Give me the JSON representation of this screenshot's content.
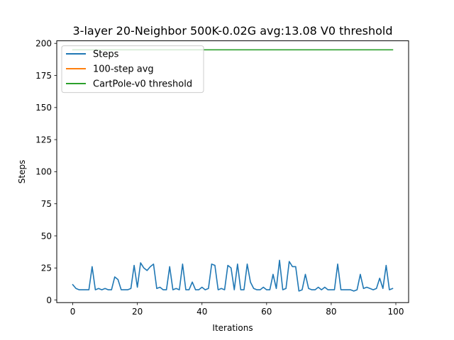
{
  "chart_data": {
    "type": "line",
    "title": "3-layer 20-Neighbor 500K-0.02G avg:13.08 V0 threshold",
    "xlabel": "Iterations",
    "ylabel": "Steps",
    "xlim": [
      -4.95,
      103.95
    ],
    "ylim": [
      -2.0,
      202.0
    ],
    "xticks": [
      0,
      20,
      40,
      60,
      80,
      100
    ],
    "yticks": [
      0,
      25,
      50,
      75,
      100,
      125,
      150,
      175,
      200
    ],
    "grid": false,
    "legend_position": "upper-left",
    "series": [
      {
        "name": "Steps",
        "color": "#1f77b4",
        "x": [
          0,
          1,
          2,
          3,
          4,
          5,
          6,
          7,
          8,
          9,
          10,
          11,
          12,
          13,
          14,
          15,
          16,
          17,
          18,
          19,
          20,
          21,
          22,
          23,
          24,
          25,
          26,
          27,
          28,
          29,
          30,
          31,
          32,
          33,
          34,
          35,
          36,
          37,
          38,
          39,
          40,
          41,
          42,
          43,
          44,
          45,
          46,
          47,
          48,
          49,
          50,
          51,
          52,
          53,
          54,
          55,
          56,
          57,
          58,
          59,
          60,
          61,
          62,
          63,
          64,
          65,
          66,
          67,
          68,
          69,
          70,
          71,
          72,
          73,
          74,
          75,
          76,
          77,
          78,
          79,
          80,
          81,
          82,
          83,
          84,
          85,
          86,
          87,
          88,
          89,
          90,
          91,
          92,
          93,
          94,
          95,
          96,
          97,
          98,
          99
        ],
        "values": [
          12,
          9,
          8,
          8,
          8,
          8,
          26,
          8,
          9,
          8,
          9,
          8,
          8,
          18,
          16,
          8,
          8,
          8,
          9,
          27,
          10,
          29,
          25,
          23,
          26,
          28,
          9,
          10,
          8,
          8,
          26,
          8,
          9,
          8,
          28,
          8,
          8,
          14,
          8,
          8,
          10,
          8,
          9,
          28,
          27,
          8,
          9,
          8,
          27,
          25,
          8,
          28,
          8,
          8,
          28,
          14,
          9,
          8,
          8,
          10,
          8,
          8,
          20,
          9,
          31,
          8,
          9,
          30,
          26,
          26,
          7,
          8,
          20,
          9,
          8,
          8,
          10,
          8,
          10,
          8,
          8,
          8,
          28,
          8,
          8,
          8,
          8,
          7,
          8,
          20,
          9,
          10,
          9,
          8,
          9,
          17,
          9,
          27,
          8,
          9
        ]
      },
      {
        "name": "100-step avg",
        "color": "#ff7f0e",
        "x": [],
        "values": []
      },
      {
        "name": "CartPole-v0 threshold",
        "color": "#2ca02c",
        "x": [
          0,
          99
        ],
        "values": [
          195,
          195
        ]
      }
    ]
  }
}
